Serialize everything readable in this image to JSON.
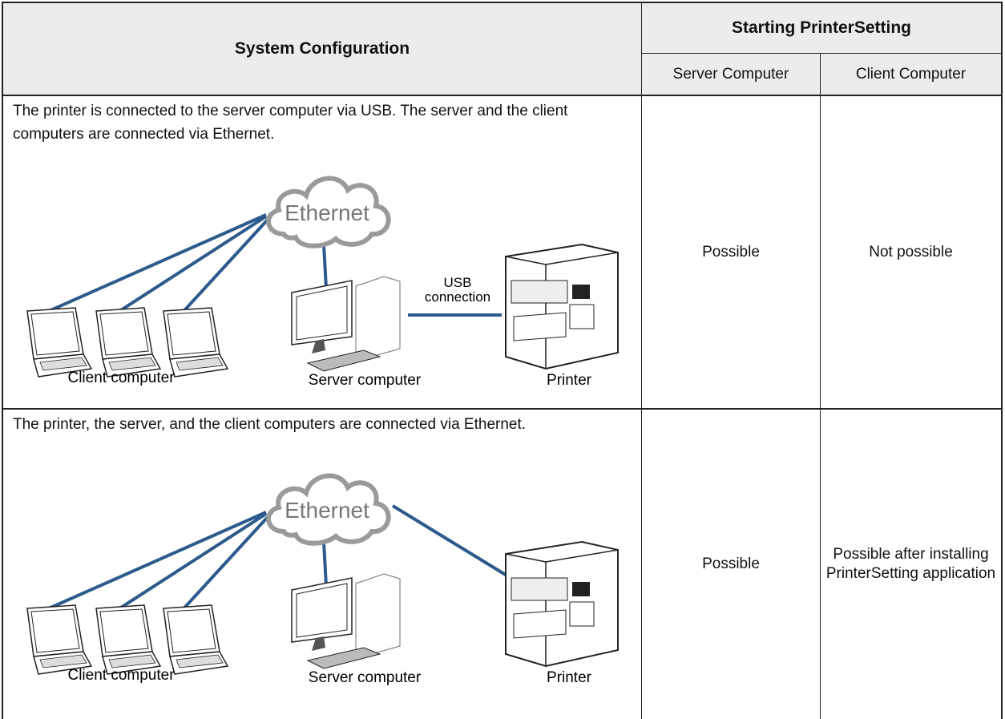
{
  "table": {
    "header": {
      "system_configuration": "System Configuration",
      "starting_printersetting": "Starting PrinterSetting",
      "server_computer": "Server Computer",
      "client_computer": "Client Computer"
    },
    "rows": [
      {
        "description": "The printer is connected to the server computer via USB. The server and the client computers are connected via Ethernet.",
        "diagram": {
          "network": "Ethernet",
          "connection_lines": [
            "USB",
            "connection"
          ],
          "clients": "Client computer",
          "server": "Server computer",
          "printer": "Printer"
        },
        "server": "Possible",
        "client": "Not possible"
      },
      {
        "description": "The printer, the server, and the client computers are connected via Ethernet.",
        "diagram": {
          "network": "Ethernet",
          "clients": "Client computer",
          "server": "Server computer",
          "printer": "Printer"
        },
        "server": "Possible",
        "client": "Possible after installing PrinterSetting application"
      }
    ]
  }
}
